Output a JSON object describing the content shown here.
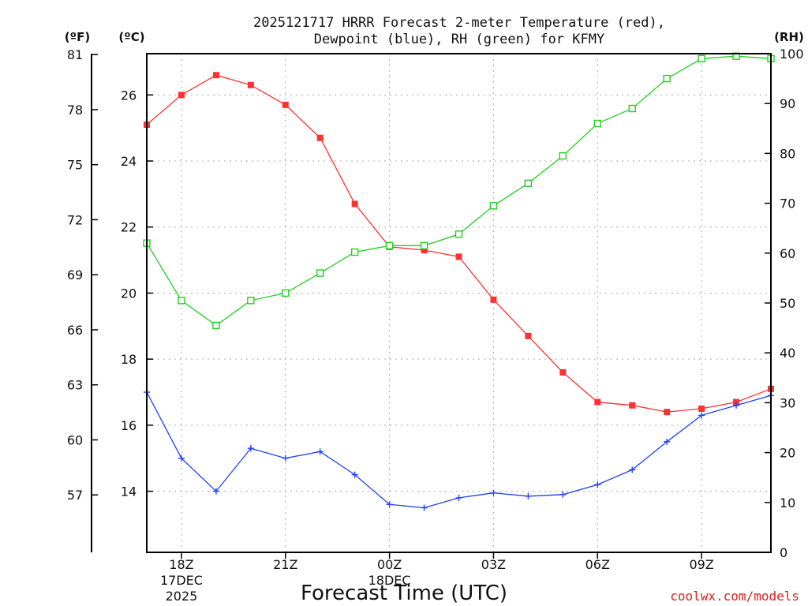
{
  "chart_data": {
    "type": "line",
    "title_line1": "2025121717 HRRR Forecast 2-meter Temperature (red),",
    "title_line2": "Dewpoint (blue), RH (green) for KFMY",
    "xlabel": "Forecast Time (UTC)",
    "credit": "coolwx.com/models",
    "unit_f": "(ºF)",
    "unit_c": "(ºC)",
    "unit_rh": "(RH)",
    "left_ticks_f": [
      "81",
      "78",
      "75",
      "72",
      "69",
      "66",
      "63",
      "60",
      "57"
    ],
    "left_ticks_c": [
      "26",
      "24",
      "22",
      "20",
      "18",
      "16",
      "14"
    ],
    "right_ticks_rh": [
      "100",
      "90",
      "80",
      "70",
      "60",
      "50",
      "40",
      "30",
      "20",
      "10",
      "0"
    ],
    "x_ticks": [
      {
        "hour": 1,
        "label": "18Z",
        "sub1": "17DEC",
        "sub2": "2025"
      },
      {
        "hour": 4,
        "label": "21Z",
        "sub1": "",
        "sub2": ""
      },
      {
        "hour": 7,
        "label": "00Z",
        "sub1": "18DEC",
        "sub2": ""
      },
      {
        "hour": 10,
        "label": "03Z",
        "sub1": "",
        "sub2": ""
      },
      {
        "hour": 13,
        "label": "06Z",
        "sub1": "",
        "sub2": ""
      },
      {
        "hour": 16,
        "label": "09Z",
        "sub1": "",
        "sub2": ""
      }
    ],
    "x_range_hours": [
      0,
      18
    ],
    "c_range": [
      12.15,
      27.25
    ],
    "rh_range": [
      0,
      100
    ],
    "f_ticks_values": [
      81,
      78,
      75,
      72,
      69,
      66,
      63,
      60,
      57
    ],
    "c_ticks_values": [
      26,
      24,
      22,
      20,
      18,
      16,
      14
    ],
    "rh_ticks_values": [
      100,
      90,
      80,
      70,
      60,
      50,
      40,
      30,
      20,
      10,
      0
    ],
    "series": [
      {
        "name": "Temperature (°C)",
        "color": "#ff3030",
        "marker": "filled-square",
        "axis": "c",
        "values": [
          25.1,
          26.0,
          26.6,
          26.3,
          25.7,
          24.7,
          22.7,
          21.4,
          21.3,
          21.1,
          19.8,
          18.7,
          17.6,
          16.7,
          16.6,
          16.4,
          16.5,
          16.7,
          17.1
        ]
      },
      {
        "name": "Dewpoint (°C)",
        "color": "#2040ff",
        "marker": "plus",
        "axis": "c",
        "values": [
          17.0,
          15.0,
          14.0,
          15.3,
          15.0,
          15.2,
          14.5,
          13.6,
          13.5,
          13.8,
          13.95,
          13.85,
          13.9,
          14.2,
          14.65,
          15.5,
          16.3,
          16.6,
          16.9
        ]
      },
      {
        "name": "RH (%)",
        "color": "#20d020",
        "marker": "open-square",
        "axis": "rh",
        "values": [
          62,
          50.5,
          45.5,
          50.5,
          52,
          56,
          60.2,
          61.5,
          61.5,
          63.8,
          69.5,
          74,
          79.5,
          86,
          89,
          95,
          99,
          99.5,
          99
        ]
      }
    ]
  }
}
